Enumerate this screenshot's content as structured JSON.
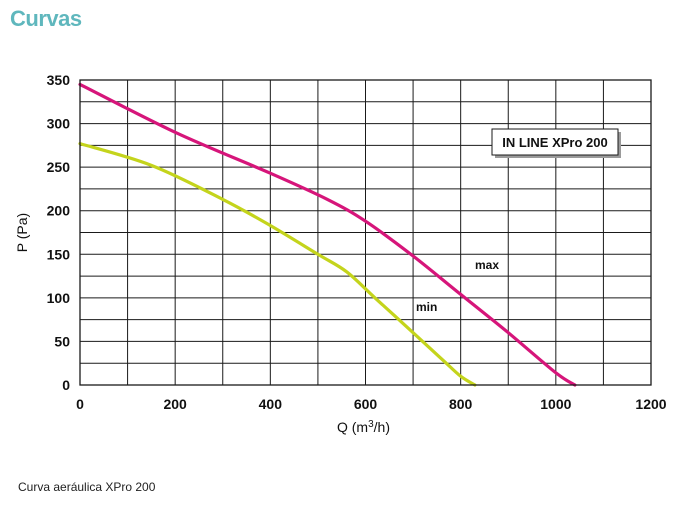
{
  "page": {
    "heading": "Curvas",
    "caption": "Curva aeráulica XPro 200",
    "heading_color": "#5fb7bd"
  },
  "chart_data": {
    "type": "line",
    "xlabel": "Q (m³/h)",
    "ylabel": "P (Pa)",
    "xlim": [
      0,
      1200
    ],
    "ylim": [
      0,
      350
    ],
    "xticks": [
      0,
      200,
      400,
      600,
      800,
      1000,
      1200
    ],
    "yticks": [
      0,
      50,
      100,
      150,
      200,
      250,
      300,
      350
    ],
    "xgrid_step": 100,
    "ygrid_step": 25,
    "grid": true,
    "legend_box": "IN LINE XPro 200",
    "series": [
      {
        "name": "max",
        "color": "#d6157a",
        "points": [
          [
            0,
            345
          ],
          [
            200,
            290
          ],
          [
            400,
            243
          ],
          [
            520,
            213
          ],
          [
            600,
            188
          ],
          [
            700,
            148
          ],
          [
            800,
            104
          ],
          [
            900,
            60
          ],
          [
            1000,
            14
          ],
          [
            1040,
            0
          ]
        ]
      },
      {
        "name": "min",
        "color": "#c4d41c",
        "points": [
          [
            0,
            277
          ],
          [
            150,
            252
          ],
          [
            300,
            213
          ],
          [
            400,
            183
          ],
          [
            500,
            150
          ],
          [
            560,
            130
          ],
          [
            620,
            100
          ],
          [
            700,
            60
          ],
          [
            760,
            30
          ],
          [
            800,
            10
          ],
          [
            830,
            0
          ]
        ]
      }
    ]
  }
}
